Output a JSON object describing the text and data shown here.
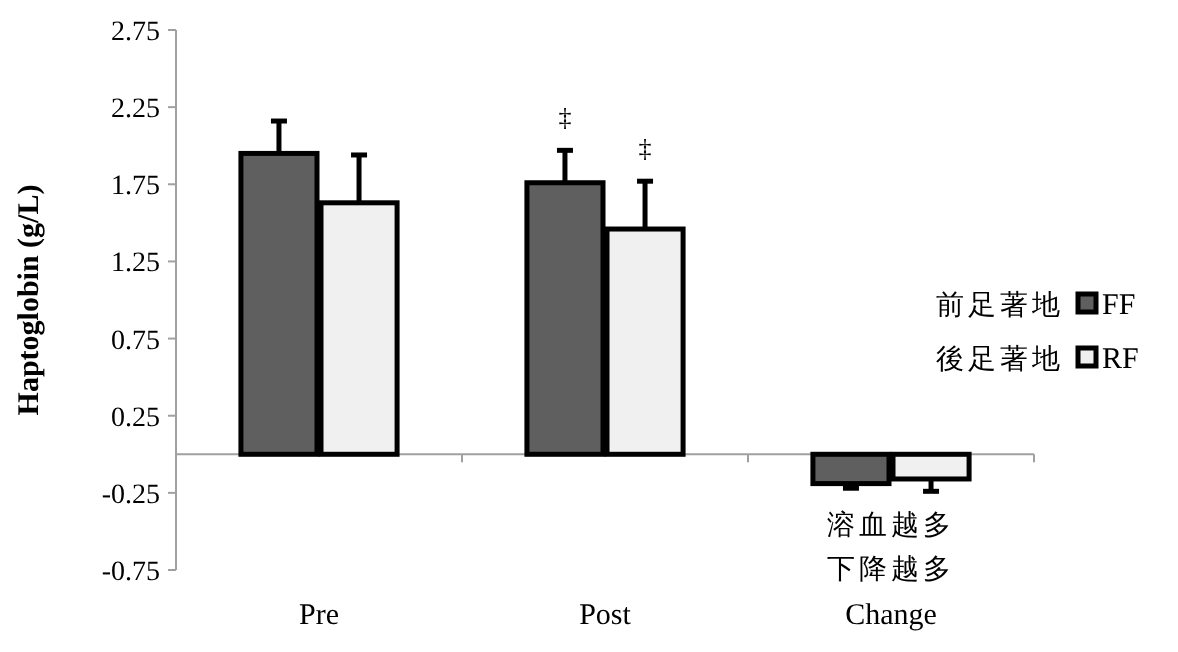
{
  "chart_data": {
    "type": "bar",
    "ylabel": "Haptoglobin (g/L)",
    "categories": [
      "Pre",
      "Post",
      "Change"
    ],
    "series": [
      {
        "name": "FF",
        "color": "#5f5f5f",
        "values": [
          1.95,
          1.76,
          -0.19
        ],
        "errors": [
          [
            1.95,
            2.16
          ],
          [
            1.76,
            1.97
          ],
          [
            -0.22,
            -0.19
          ]
        ]
      },
      {
        "name": "RF",
        "color": "#f0f0f0",
        "values": [
          1.63,
          1.46,
          -0.16
        ],
        "errors": [
          [
            1.63,
            1.94
          ],
          [
            1.46,
            1.77
          ],
          [
            -0.24,
            -0.16
          ]
        ]
      }
    ],
    "ylim": [
      -0.75,
      2.75
    ],
    "yticks": [
      -0.75,
      -0.25,
      0.25,
      0.75,
      1.25,
      1.75,
      2.25,
      2.75
    ],
    "grid": false,
    "legend": "right",
    "annotations": [
      "‡",
      "‡",
      "前足著地",
      "後足著地",
      "溶血越多",
      "下降越多"
    ]
  }
}
